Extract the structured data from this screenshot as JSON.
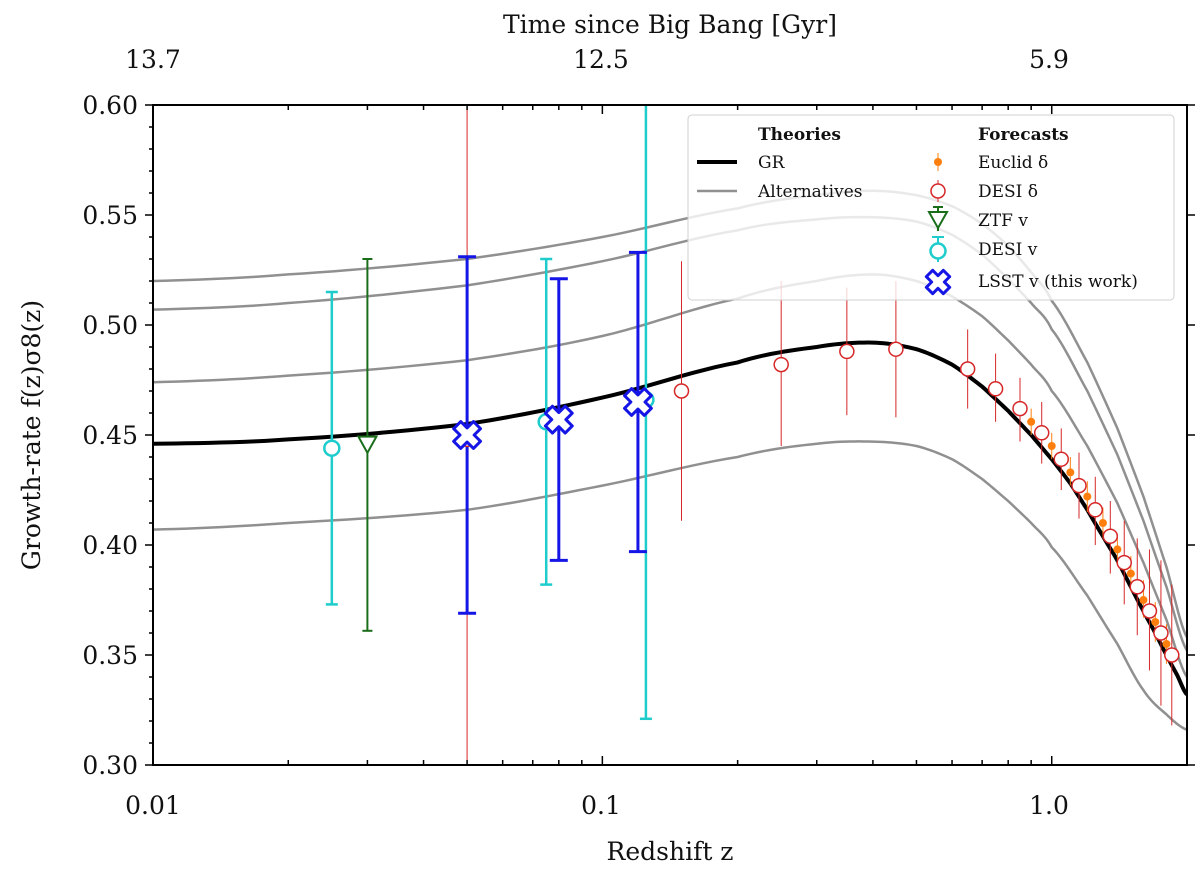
{
  "chart_data": {
    "type": "line",
    "xscale": "log",
    "xlim": [
      0.01,
      2.0
    ],
    "ylim": [
      0.3,
      0.6
    ],
    "xlabel": "Redshift z",
    "ylabel": "Growth-rate f(z)σ8(z)",
    "top_axis_title": "Time since Big Bang [Gyr]",
    "x_ticks": [
      {
        "value": 0.01,
        "label": "0.01"
      },
      {
        "value": 0.1,
        "label": "0.1"
      },
      {
        "value": 1.0,
        "label": "1.0"
      }
    ],
    "y_ticks": [
      {
        "value": 0.3,
        "label": "0.30"
      },
      {
        "value": 0.35,
        "label": "0.35"
      },
      {
        "value": 0.4,
        "label": "0.40"
      },
      {
        "value": 0.45,
        "label": "0.45"
      },
      {
        "value": 0.5,
        "label": "0.50"
      },
      {
        "value": 0.55,
        "label": "0.55"
      },
      {
        "value": 0.6,
        "label": "0.60"
      }
    ],
    "top_ticks": [
      {
        "z": 0.01,
        "label": "13.7"
      },
      {
        "z": 0.1,
        "label": "12.5"
      },
      {
        "z": 1.0,
        "label": "5.9"
      }
    ],
    "legend": {
      "theories_header": "Theories",
      "forecasts_header": "Forecasts",
      "gr": "GR",
      "alternatives": "Alternatives",
      "euclid": "Euclid δ",
      "desi_delta": "DESI δ",
      "ztf": "ZTF v",
      "desi_v": "DESI v",
      "lsst": "LSST v (this work)"
    },
    "theory_curves": {
      "gr": {
        "name": "GR",
        "color": "#000000",
        "x": [
          0.01,
          0.02,
          0.05,
          0.1,
          0.2,
          0.3,
          0.4,
          0.5,
          0.6,
          0.7,
          0.8,
          0.9,
          1.0,
          1.1,
          1.2,
          1.3,
          1.4,
          1.5,
          1.6,
          1.7,
          1.8,
          1.9,
          2.0
        ],
        "y": [
          0.446,
          0.448,
          0.455,
          0.467,
          0.483,
          0.49,
          0.492,
          0.489,
          0.482,
          0.472,
          0.461,
          0.45,
          0.439,
          0.428,
          0.416,
          0.404,
          0.393,
          0.381,
          0.37,
          0.36,
          0.35,
          0.341,
          0.332
        ]
      },
      "alternatives": [
        {
          "name": "Alternative 1",
          "color": "#909090",
          "x": [
            0.01,
            0.02,
            0.05,
            0.1,
            0.2,
            0.3,
            0.4,
            0.5,
            0.6,
            0.7,
            0.8,
            0.9,
            1.0,
            1.2,
            1.4,
            1.6,
            1.8,
            2.0
          ],
          "y": [
            0.52,
            0.523,
            0.53,
            0.54,
            0.553,
            0.559,
            0.561,
            0.559,
            0.554,
            0.546,
            0.536,
            0.524,
            0.511,
            0.483,
            0.453,
            0.422,
            0.39,
            0.358
          ]
        },
        {
          "name": "Alternative 2",
          "color": "#909090",
          "x": [
            0.01,
            0.02,
            0.05,
            0.1,
            0.2,
            0.3,
            0.4,
            0.5,
            0.6,
            0.7,
            0.8,
            0.9,
            1.0,
            1.2,
            1.4,
            1.6,
            1.8,
            2.0
          ],
          "y": [
            0.507,
            0.51,
            0.518,
            0.529,
            0.543,
            0.548,
            0.549,
            0.547,
            0.541,
            0.532,
            0.521,
            0.51,
            0.498,
            0.47,
            0.441,
            0.411,
            0.381,
            0.352
          ]
        },
        {
          "name": "Alternative 3",
          "color": "#909090",
          "x": [
            0.01,
            0.02,
            0.05,
            0.1,
            0.2,
            0.3,
            0.4,
            0.5,
            0.6,
            0.7,
            0.8,
            0.9,
            1.0,
            1.2,
            1.4,
            1.6,
            1.8,
            2.0
          ],
          "y": [
            0.474,
            0.477,
            0.484,
            0.495,
            0.512,
            0.52,
            0.523,
            0.52,
            0.513,
            0.504,
            0.493,
            0.482,
            0.47,
            0.445,
            0.419,
            0.392,
            0.366,
            0.34
          ]
        },
        {
          "name": "Alternative 4",
          "color": "#909090",
          "x": [
            0.01,
            0.02,
            0.05,
            0.1,
            0.2,
            0.3,
            0.4,
            0.5,
            0.6,
            0.7,
            0.8,
            0.9,
            1.0,
            1.2,
            1.4,
            1.6,
            1.8,
            2.0
          ],
          "y": [
            0.407,
            0.41,
            0.416,
            0.427,
            0.44,
            0.446,
            0.447,
            0.445,
            0.439,
            0.43,
            0.42,
            0.41,
            0.399,
            0.377,
            0.355,
            0.334,
            0.323,
            0.316
          ]
        }
      ]
    },
    "series": [
      {
        "name": "DESI δ",
        "marker": "circle-open",
        "color": "#d62728",
        "points": [
          {
            "z": 0.05,
            "y": 0.448,
            "lo": 0.3,
            "hi": 0.6
          },
          {
            "z": 0.15,
            "y": 0.47,
            "lo": 0.411,
            "hi": 0.529
          },
          {
            "z": 0.25,
            "y": 0.482,
            "lo": 0.445,
            "hi": 0.52
          },
          {
            "z": 0.35,
            "y": 0.488,
            "lo": 0.459,
            "hi": 0.517
          },
          {
            "z": 0.45,
            "y": 0.489,
            "lo": 0.458,
            "hi": 0.52
          },
          {
            "z": 0.65,
            "y": 0.48,
            "lo": 0.462,
            "hi": 0.498
          },
          {
            "z": 0.75,
            "y": 0.471,
            "lo": 0.456,
            "hi": 0.487
          },
          {
            "z": 0.85,
            "y": 0.462,
            "lo": 0.447,
            "hi": 0.476
          },
          {
            "z": 0.95,
            "y": 0.451,
            "lo": 0.437,
            "hi": 0.465
          },
          {
            "z": 1.05,
            "y": 0.439,
            "lo": 0.425,
            "hi": 0.453
          },
          {
            "z": 1.15,
            "y": 0.427,
            "lo": 0.412,
            "hi": 0.442
          },
          {
            "z": 1.25,
            "y": 0.416,
            "lo": 0.4,
            "hi": 0.431
          },
          {
            "z": 1.35,
            "y": 0.404,
            "lo": 0.387,
            "hi": 0.42
          },
          {
            "z": 1.45,
            "y": 0.392,
            "lo": 0.373,
            "hi": 0.411
          },
          {
            "z": 1.55,
            "y": 0.381,
            "lo": 0.359,
            "hi": 0.403
          },
          {
            "z": 1.65,
            "y": 0.37,
            "lo": 0.343,
            "hi": 0.398
          },
          {
            "z": 1.75,
            "y": 0.36,
            "lo": 0.327,
            "hi": 0.393
          },
          {
            "z": 1.85,
            "y": 0.35,
            "lo": 0.318,
            "hi": 0.382
          }
        ]
      },
      {
        "name": "Euclid δ",
        "marker": "dot",
        "color": "#ff7f0e",
        "points": [
          {
            "z": 0.9,
            "y": 0.456,
            "lo": 0.45,
            "hi": 0.462
          },
          {
            "z": 1.0,
            "y": 0.445,
            "lo": 0.439,
            "hi": 0.451
          },
          {
            "z": 1.1,
            "y": 0.433,
            "lo": 0.427,
            "hi": 0.44
          },
          {
            "z": 1.2,
            "y": 0.422,
            "lo": 0.415,
            "hi": 0.429
          },
          {
            "z": 1.3,
            "y": 0.41,
            "lo": 0.403,
            "hi": 0.417
          },
          {
            "z": 1.4,
            "y": 0.398,
            "lo": 0.391,
            "hi": 0.405
          },
          {
            "z": 1.5,
            "y": 0.387,
            "lo": 0.379,
            "hi": 0.395
          },
          {
            "z": 1.6,
            "y": 0.375,
            "lo": 0.367,
            "hi": 0.384
          },
          {
            "z": 1.7,
            "y": 0.365,
            "lo": 0.356,
            "hi": 0.374
          },
          {
            "z": 1.8,
            "y": 0.355,
            "lo": 0.346,
            "hi": 0.364
          }
        ]
      },
      {
        "name": "ZTF v",
        "marker": "triangle-down-open",
        "color": "#1a6e1a",
        "points": [
          {
            "z": 0.03,
            "y": 0.446,
            "lo": 0.361,
            "hi": 0.53
          }
        ]
      },
      {
        "name": "DESI v",
        "marker": "circle-open",
        "color": "#1ecccc",
        "points": [
          {
            "z": 0.025,
            "y": 0.444,
            "lo": 0.373,
            "hi": 0.515
          },
          {
            "z": 0.075,
            "y": 0.456,
            "lo": 0.382,
            "hi": 0.53
          },
          {
            "z": 0.125,
            "y": 0.466,
            "lo": 0.321,
            "hi": 0.6
          }
        ]
      },
      {
        "name": "LSST v (this work)",
        "marker": "x-filled",
        "color": "#1515e6",
        "points": [
          {
            "z": 0.05,
            "y": 0.45,
            "lo": 0.369,
            "hi": 0.531
          },
          {
            "z": 0.08,
            "y": 0.457,
            "lo": 0.393,
            "hi": 0.521
          },
          {
            "z": 0.12,
            "y": 0.465,
            "lo": 0.397,
            "hi": 0.533
          }
        ]
      }
    ]
  }
}
